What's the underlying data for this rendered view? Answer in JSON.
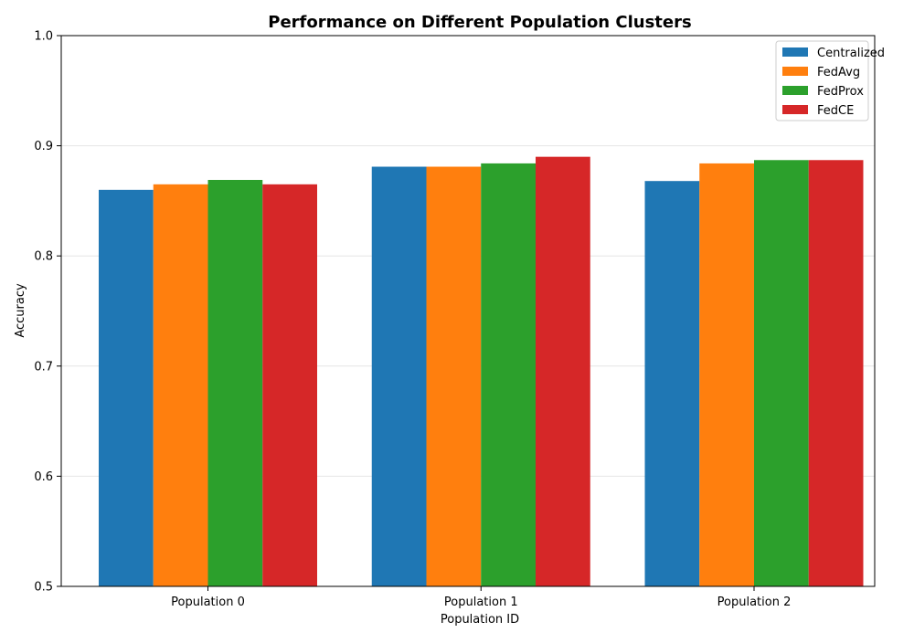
{
  "chart_data": {
    "type": "bar",
    "title": "Performance on Different Population Clusters",
    "xlabel": "Population ID",
    "ylabel": "Accuracy",
    "categories": [
      "Population 0",
      "Population 1",
      "Population 2"
    ],
    "ylim": [
      0.5,
      1.0
    ],
    "yticks": [
      "0.5",
      "0.6",
      "0.7",
      "0.8",
      "0.9",
      "1.0"
    ],
    "grid": "horizontal",
    "legend_position": "top-right",
    "series": [
      {
        "name": "Centralized",
        "color": "#1f77b4",
        "values": [
          0.86,
          0.881,
          0.868
        ]
      },
      {
        "name": "FedAvg",
        "color": "#ff7f0e",
        "values": [
          0.865,
          0.881,
          0.884
        ]
      },
      {
        "name": "FedProx",
        "color": "#2ca02c",
        "values": [
          0.869,
          0.884,
          0.887
        ]
      },
      {
        "name": "FedCE",
        "color": "#d62728",
        "values": [
          0.865,
          0.89,
          0.887
        ]
      }
    ]
  }
}
